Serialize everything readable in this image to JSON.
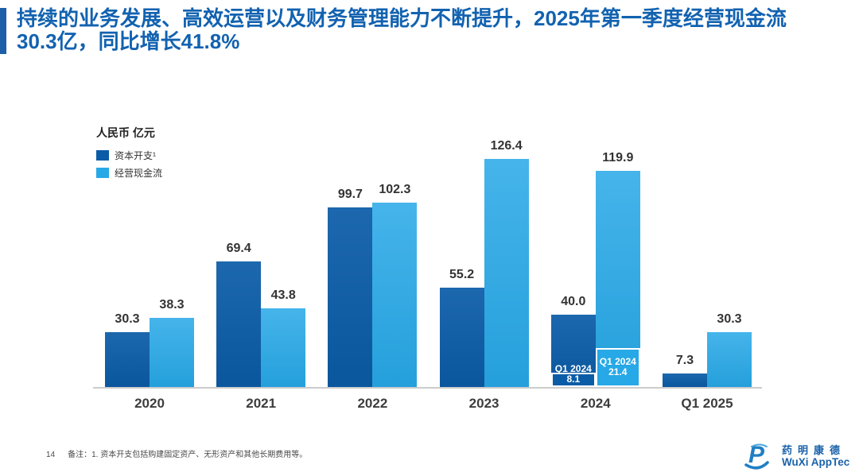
{
  "slide": {
    "title_line1": "持续的业务发展、高效运营以及财务管理能力不断提升，2025年第一季度经营现金流",
    "title_line2": "30.3亿，同比增长41.8%",
    "page_number": "14",
    "footnote": "备注：1. 资本开支包括购建固定资产、无形资产和其他长期费用等。",
    "logo_cn": "药明康德",
    "logo_en": "WuXi AppTec"
  },
  "colors": {
    "title_blue": "#1262b0",
    "accent_bar": "#1c5ea8",
    "capex_dark_blue": "#0b5ca7",
    "cashflow_light_blue": "#27a8e7",
    "axis_gray": "#cccccc",
    "label_gray": "#333333"
  },
  "chart_data": {
    "type": "bar",
    "title": "",
    "unit_label": "人民币 亿元",
    "categories": [
      "2020",
      "2021",
      "2022",
      "2023",
      "2024",
      "Q1 2025"
    ],
    "series": [
      {
        "name": "资本开支¹",
        "color": "#0b5ca7",
        "values": [
          30.3,
          69.4,
          99.7,
          55.2,
          40.0,
          7.3
        ],
        "labels": [
          "30.3",
          "69.4",
          "99.7",
          "55.2",
          "40.0",
          "7.3"
        ]
      },
      {
        "name": "经营现金流",
        "color": "#27a8e7",
        "values": [
          38.3,
          43.8,
          102.3,
          126.4,
          119.9,
          30.3
        ],
        "labels": [
          "38.3",
          "43.8",
          "102.3",
          "126.4",
          "119.9",
          "30.3"
        ]
      }
    ],
    "overlays": [
      {
        "category": "2024",
        "series_index": 0,
        "title": "Q1 2024",
        "value": 8.1,
        "value_label": "8.1"
      },
      {
        "category": "2024",
        "series_index": 1,
        "title": "Q1 2024",
        "value": 21.4,
        "value_label": "21.4"
      }
    ],
    "xlabel": "",
    "ylabel": "人民币 亿元",
    "ylim": [
      0,
      140
    ],
    "grid": false,
    "legend_position": "top-left"
  }
}
